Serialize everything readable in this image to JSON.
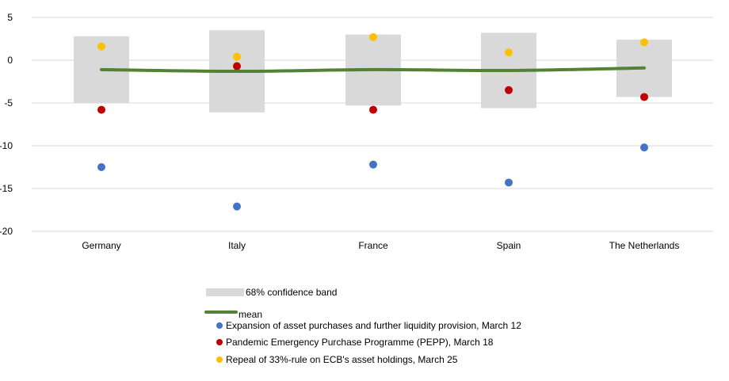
{
  "chart_data": {
    "type": "scatter",
    "categories": [
      "Germany",
      "Italy",
      "France",
      "Spain",
      "The Netherlands"
    ],
    "ylim": [
      -20,
      5
    ],
    "yticks": [
      5,
      0,
      -5,
      -10,
      -15,
      -20
    ],
    "grid": true,
    "legend_position": "bottom",
    "band": {
      "name": "68% confidence band",
      "color": "#d9d9d9",
      "low": [
        -5.0,
        -6.1,
        -5.3,
        -5.6,
        -4.3
      ],
      "high": [
        2.8,
        3.5,
        3.0,
        3.2,
        2.4
      ]
    },
    "mean": {
      "name": "mean",
      "color": "#538135",
      "values": [
        -1.1,
        -1.3,
        -1.1,
        -1.2,
        -0.9
      ]
    },
    "series": [
      {
        "name": "Expansion of asset purchases and further liquidity provision, March 12",
        "color": "#4472c4",
        "values": [
          -12.5,
          -17.1,
          -12.2,
          -14.3,
          -10.2
        ]
      },
      {
        "name": "Pandemic Emergency  Purchase Programme (PEPP), March 18",
        "color": "#c00000",
        "values": [
          -5.8,
          -0.7,
          -5.8,
          -3.5,
          -4.3
        ]
      },
      {
        "name": "Repeal of 33%-rule on ECB's asset holdings, March 25",
        "color": "#ffc000",
        "values": [
          1.6,
          0.4,
          2.7,
          0.9,
          2.1
        ]
      }
    ]
  }
}
